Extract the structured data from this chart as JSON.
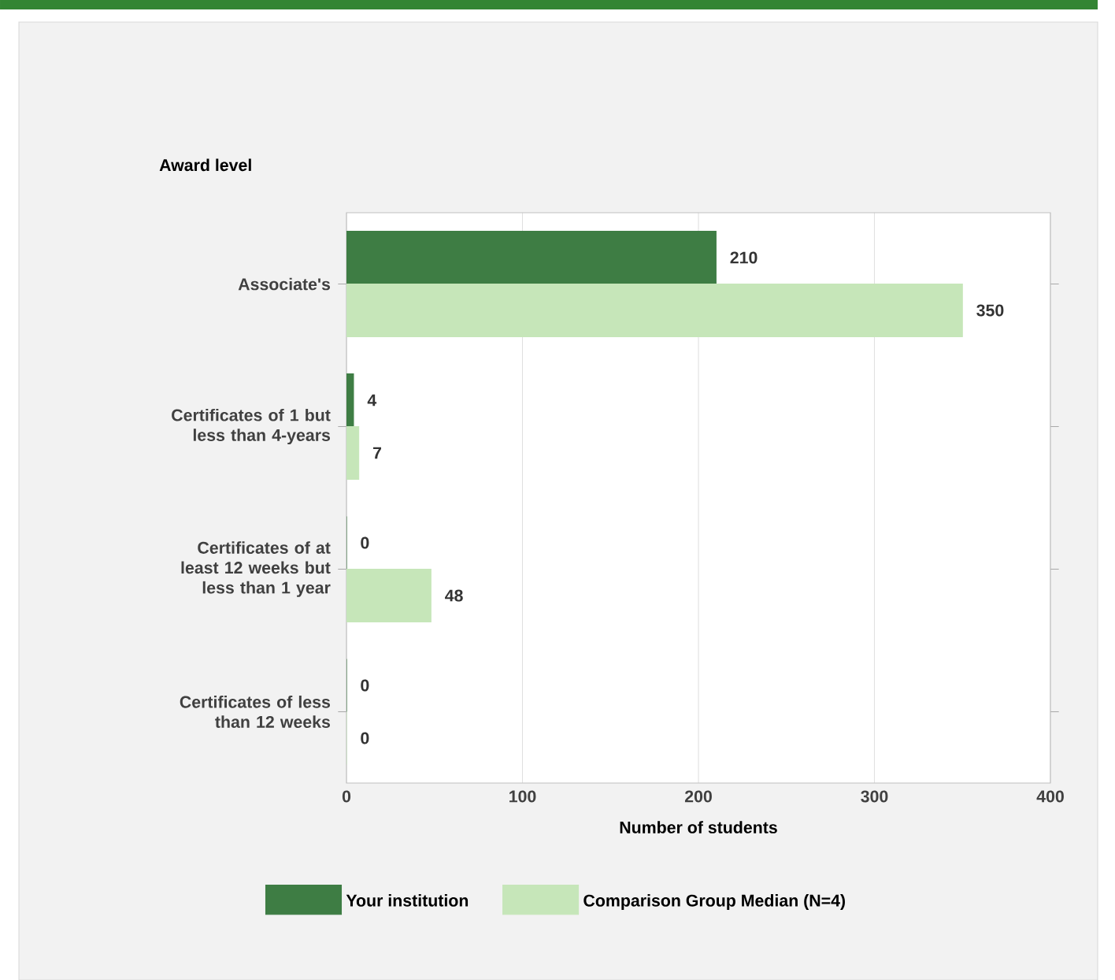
{
  "chart_data": {
    "type": "bar",
    "orientation": "horizontal",
    "ylabel": "Award level",
    "xlabel": "Number of students",
    "categories": [
      "Associate's",
      "Certificates of 1 but less than 4-years",
      "Certificates of at least 12 weeks but less than 1 year",
      "Certificates of less than 12 weeks"
    ],
    "series": [
      {
        "name": "Your institution",
        "color": "#3e7d44",
        "values": [
          210,
          4,
          0,
          0
        ]
      },
      {
        "name": "Comparison Group Median (N=4)",
        "color": "#c6e6b9",
        "values": [
          350,
          7,
          48,
          0
        ]
      }
    ],
    "xlim": [
      0,
      400
    ],
    "xticks": [
      0,
      100,
      200,
      300,
      400
    ],
    "grid": "x",
    "legend": "bottom",
    "data_labels": true
  }
}
